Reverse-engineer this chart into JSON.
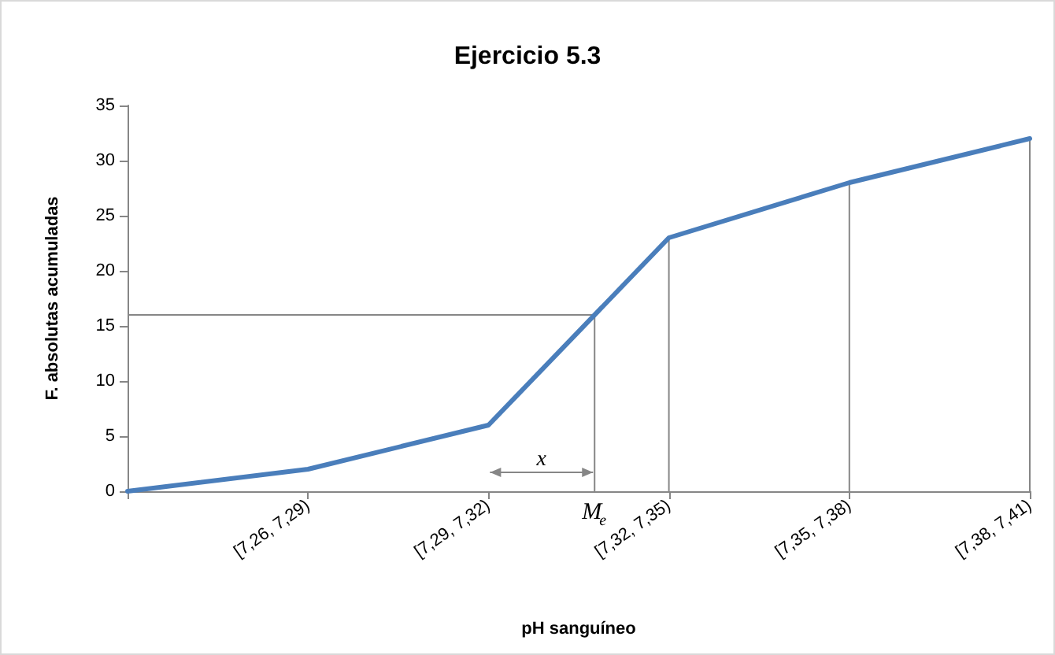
{
  "chart_data": {
    "type": "line",
    "title": "Ejercicio 5.3",
    "xlabel": "pH sanguíneo",
    "ylabel": "F. absolutas acumuladas",
    "categories": [
      null,
      "[7,26, 7,29)",
      "[7,29, 7,32)",
      "[7,32, 7,35)",
      "[7,35, 7,38)",
      "[7,38, 7,41)"
    ],
    "series": [
      {
        "color": "#4a7ebb",
        "values": [
          0,
          2,
          6,
          23,
          28,
          32
        ]
      }
    ],
    "ylim": [
      0,
      35
    ],
    "yticks": [
      0,
      5,
      10,
      15,
      20,
      25,
      30,
      35
    ],
    "grid": false,
    "marker": "none",
    "line_style": "solid",
    "ref_lines": [
      {
        "axis": "x",
        "value": "[7,32, 7,35)",
        "color": "#868686"
      },
      {
        "axis": "x",
        "value": "[7,35, 7,38)",
        "color": "#868686"
      },
      {
        "axis": "x",
        "value": "[7,38, 7,41)",
        "color": "#868686"
      },
      {
        "axis": "y",
        "value": 16,
        "label": "M$_{e}$",
        "color": "#868686"
      }
    ],
    "annotations": [
      "x"
    ]
  }
}
